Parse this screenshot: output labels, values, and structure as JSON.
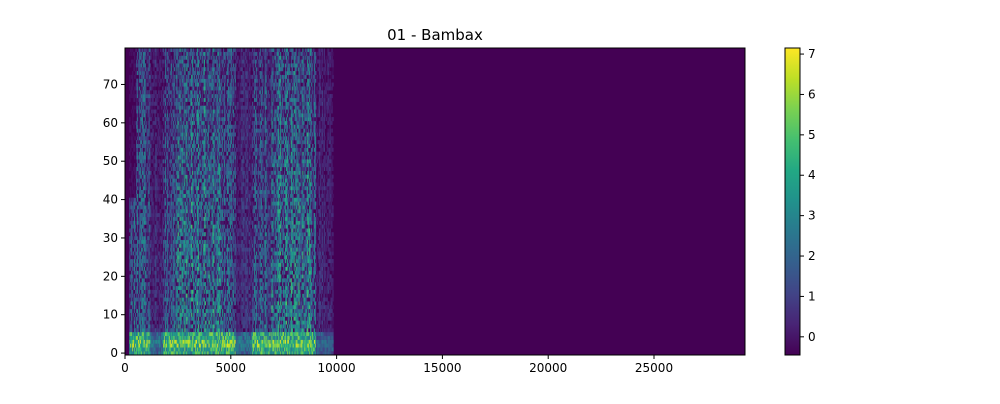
{
  "chart_data": {
    "type": "heatmap",
    "title": "01 - Bambax",
    "xlabel": "",
    "ylabel": "",
    "xlim": [
      0,
      29300
    ],
    "ylim": [
      -0.5,
      79.5
    ],
    "x_ticks": [
      0,
      5000,
      10000,
      15000,
      20000,
      25000
    ],
    "y_ticks": [
      0,
      10,
      20,
      30,
      40,
      50,
      60,
      70
    ],
    "grid": false,
    "colormap": "viridis",
    "colorbar": {
      "range": [
        -0.45,
        7.15
      ],
      "ticks": [
        0,
        1,
        2,
        3,
        4,
        5,
        6,
        7
      ]
    },
    "background_value": -0.45,
    "signal_region": {
      "x_start": 200,
      "x_end": 9800,
      "dense_x_ranges": [
        [
          2400,
          4600
        ],
        [
          6900,
          8800
        ]
      ],
      "low_energy_gap_x": [
        [
          1200,
          1800
        ],
        [
          5200,
          6000
        ]
      ],
      "low_frequency_bright_bins": [
        0,
        1,
        2,
        3,
        4,
        5
      ],
      "strong_value_max": 7.0
    }
  }
}
